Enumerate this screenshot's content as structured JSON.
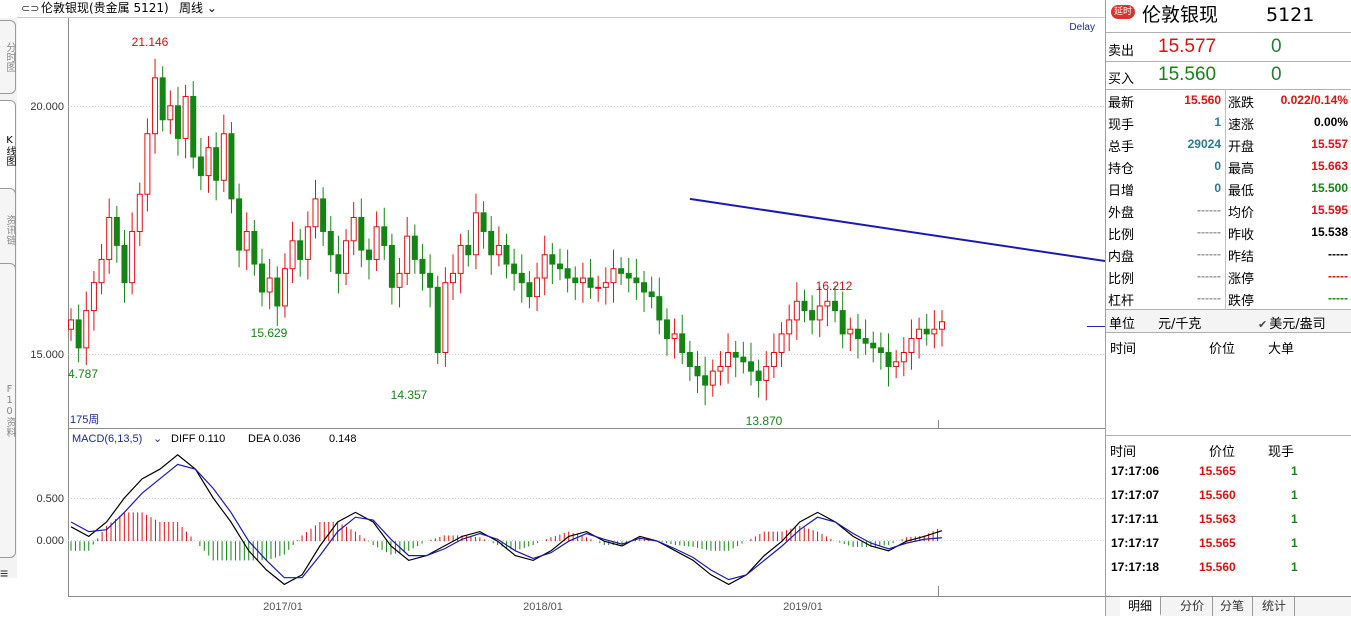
{
  "title_bar": {
    "icon": "link-icon",
    "instrument": "伦敦银现(贵金属 5121)",
    "period": "周线"
  },
  "left_tabs": [
    {
      "label": "分时图"
    },
    {
      "label": "K线图"
    },
    {
      "label": "资讯链"
    },
    {
      "label": "F10资料"
    }
  ],
  "chart_data": [
    {
      "type": "candlestick",
      "period": "weekly",
      "indicator_label": "175周",
      "delay_label": "Delay",
      "ylim": [
        13.45,
        22.0
      ],
      "y_ticks": [
        "20.000",
        "15.000"
      ],
      "x_ticks": [
        "2017/01",
        "2018/01",
        "2019/01"
      ],
      "annotations": [
        {
          "text": "21.146",
          "color": "#d01010"
        },
        {
          "text": "15.629",
          "color": "#148414"
        },
        {
          "text": "14.357",
          "color": "#148414"
        },
        {
          "text": "4.787",
          "color": "#148414"
        },
        {
          "text": "13.870",
          "color": "#148414"
        },
        {
          "text": "16.212",
          "color": "#d01010"
        }
      ],
      "candles": [
        15.6,
        15.0,
        15.8,
        16.4,
        16.9,
        17.8,
        17.2,
        16.4,
        17.5,
        18.3,
        19.6,
        20.8,
        19.9,
        20.2,
        19.5,
        20.4,
        19.1,
        18.7,
        19.3,
        18.6,
        19.6,
        18.2,
        17.1,
        17.5,
        16.8,
        16.2,
        16.5,
        15.9,
        16.7,
        17.3,
        16.9,
        17.6,
        18.2,
        17.5,
        17.0,
        16.6,
        17.3,
        17.8,
        17.1,
        16.9,
        17.6,
        17.2,
        16.3,
        16.6,
        17.4,
        16.9,
        16.6,
        16.3,
        14.9,
        16.4,
        16.6,
        17.2,
        17.0,
        17.9,
        17.5,
        17.0,
        17.2,
        16.8,
        16.6,
        16.4,
        16.1,
        16.5,
        17.0,
        16.8,
        16.7,
        16.5,
        16.4,
        16.5,
        16.3,
        16.3,
        16.4,
        16.7,
        16.6,
        16.5,
        16.4,
        16.2,
        16.1,
        15.6,
        15.2,
        15.3,
        14.9,
        14.6,
        14.4,
        14.2,
        14.5,
        14.6,
        14.9,
        14.8,
        14.7,
        14.5,
        14.3,
        14.6,
        14.9,
        15.3,
        15.6,
        16.0,
        15.8,
        15.6,
        15.9,
        16.0,
        15.8,
        15.3,
        15.4,
        15.2,
        15.1,
        15.0,
        14.9,
        14.6,
        14.7,
        14.9,
        15.2,
        15.4,
        15.3,
        15.4,
        15.56
      ],
      "trendlines": [
        {
          "name": "upper",
          "from": {
            "x_index": 81,
            "y": 18.2
          },
          "to": {
            "x_index": 199,
            "y": 15.3
          }
        },
        {
          "name": "lower",
          "from": {
            "x_index": 148,
            "y": 13.9
          },
          "to": {
            "x_index": 200,
            "y": 14.8
          }
        }
      ]
    },
    {
      "type": "macd",
      "label": "MACD(6,13,5)",
      "diff_label": "DIFF 0.110",
      "dea_label": "DEA 0.036",
      "macd_value": "0.148",
      "ylim": [
        -0.55,
        0.95
      ],
      "y_ticks": [
        "0.500",
        "0.000"
      ],
      "diff": [
        0.15,
        0.05,
        0.2,
        0.45,
        0.65,
        0.75,
        0.9,
        0.75,
        0.45,
        0.2,
        -0.1,
        -0.3,
        -0.45,
        -0.35,
        -0.05,
        0.2,
        0.3,
        0.2,
        -0.05,
        -0.2,
        -0.15,
        -0.05,
        0.05,
        0.1,
        0.0,
        -0.15,
        -0.2,
        -0.1,
        0.05,
        0.1,
        0.0,
        -0.05,
        0.05,
        0.0,
        -0.1,
        -0.2,
        -0.35,
        -0.45,
        -0.35,
        -0.15,
        0.0,
        0.2,
        0.3,
        0.2,
        0.05,
        -0.05,
        -0.1,
        0.0,
        0.05,
        0.11
      ],
      "dea": [
        0.2,
        0.1,
        0.12,
        0.3,
        0.5,
        0.65,
        0.8,
        0.75,
        0.55,
        0.3,
        0.0,
        -0.2,
        -0.38,
        -0.38,
        -0.15,
        0.1,
        0.25,
        0.22,
        0.02,
        -0.15,
        -0.15,
        -0.08,
        0.02,
        0.08,
        0.02,
        -0.1,
        -0.18,
        -0.12,
        0.0,
        0.08,
        0.02,
        -0.03,
        0.03,
        0.0,
        -0.08,
        -0.17,
        -0.3,
        -0.4,
        -0.35,
        -0.2,
        -0.05,
        0.12,
        0.25,
        0.2,
        0.08,
        -0.02,
        -0.08,
        -0.02,
        0.02,
        0.036
      ]
    }
  ],
  "panel": {
    "badge": "延时",
    "name": "伦敦银现",
    "code": "5121",
    "sell": {
      "label": "卖出",
      "price": "15.577",
      "vol": "0"
    },
    "buy": {
      "label": "买入",
      "price": "15.560",
      "vol": "0"
    },
    "left_stats": [
      {
        "label": "最新",
        "value": "15.560",
        "color": "red"
      },
      {
        "label": "现手",
        "value": "1",
        "color": "teal"
      },
      {
        "label": "总手",
        "value": "29024",
        "color": "teal"
      },
      {
        "label": "持仓",
        "value": "0",
        "color": "teal"
      },
      {
        "label": "日增",
        "value": "0",
        "color": "teal"
      },
      {
        "label": "外盘",
        "value": "------",
        "color": "gray"
      },
      {
        "label": "比例",
        "value": "------",
        "color": "gray"
      },
      {
        "label": "内盘",
        "value": "------",
        "color": "gray"
      },
      {
        "label": "比例",
        "value": "------",
        "color": "gray"
      },
      {
        "label": "杠杆",
        "value": "------",
        "color": "gray"
      }
    ],
    "right_stats": [
      {
        "label": "涨跌",
        "value": "0.022/0.14%",
        "color": "red"
      },
      {
        "label": "速涨",
        "value": "0.00%",
        "color": "black"
      },
      {
        "label": "开盘",
        "value": "15.557",
        "color": "red"
      },
      {
        "label": "最高",
        "value": "15.663",
        "color": "red"
      },
      {
        "label": "最低",
        "value": "15.500",
        "color": "green"
      },
      {
        "label": "均价",
        "value": "15.595",
        "color": "red"
      },
      {
        "label": "昨收",
        "value": "15.538",
        "color": "black"
      },
      {
        "label": "昨结",
        "value": "-----",
        "color": "black"
      },
      {
        "label": "涨停",
        "value": "-----",
        "color": "red"
      },
      {
        "label": "跌停",
        "value": "-----",
        "color": "green"
      }
    ],
    "unit": {
      "label": "单位",
      "unit1": "元/千克",
      "unit2": "美元/盎司"
    },
    "big_order_header": {
      "time": "时间",
      "price": "价位",
      "big": "大单"
    },
    "tick_header": {
      "time": "时间",
      "price": "价位",
      "vol": "现手"
    },
    "ticks": [
      {
        "time": "17:17:06",
        "price": "15.565",
        "vol": "1"
      },
      {
        "time": "17:17:07",
        "price": "15.560",
        "vol": "1"
      },
      {
        "time": "17:17:11",
        "price": "15.563",
        "vol": "1"
      },
      {
        "time": "17:17:17",
        "price": "15.565",
        "vol": "1"
      },
      {
        "time": "17:17:18",
        "price": "15.560",
        "vol": "1"
      }
    ],
    "tabs": [
      "明细",
      "分价",
      "分笔",
      "统计"
    ]
  }
}
